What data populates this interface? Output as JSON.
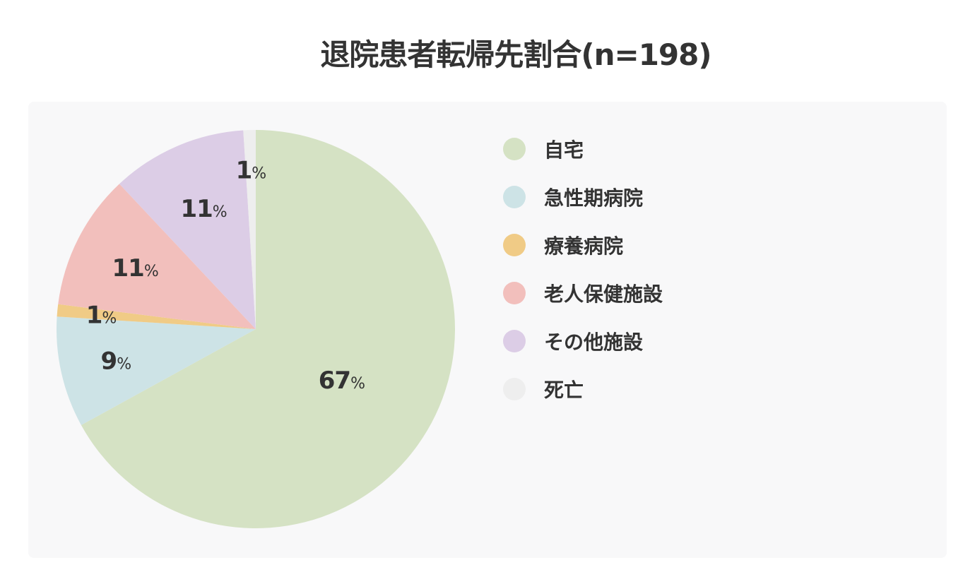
{
  "chart_data": {
    "type": "pie",
    "title": "退院患者転帰先割合(n=198)",
    "unit": "%",
    "legend_position": "right",
    "start_angle_deg": 0,
    "direction": "clockwise",
    "slices": [
      {
        "label": "自宅",
        "value": 67,
        "display": "67",
        "color": "#d5e2c4"
      },
      {
        "label": "急性期病院",
        "value": 9,
        "display": "9",
        "color": "#cde3e6"
      },
      {
        "label": "療養病院",
        "value": 1,
        "display": "1",
        "color": "#f0cb86"
      },
      {
        "label": "老人保健施設",
        "value": 11,
        "display": "11",
        "color": "#f2bfbc"
      },
      {
        "label": "その他施設",
        "value": 11,
        "display": "11",
        "color": "#dccde6"
      },
      {
        "label": "死亡",
        "value": 1,
        "display": "1",
        "color": "#eeeeee"
      }
    ]
  }
}
